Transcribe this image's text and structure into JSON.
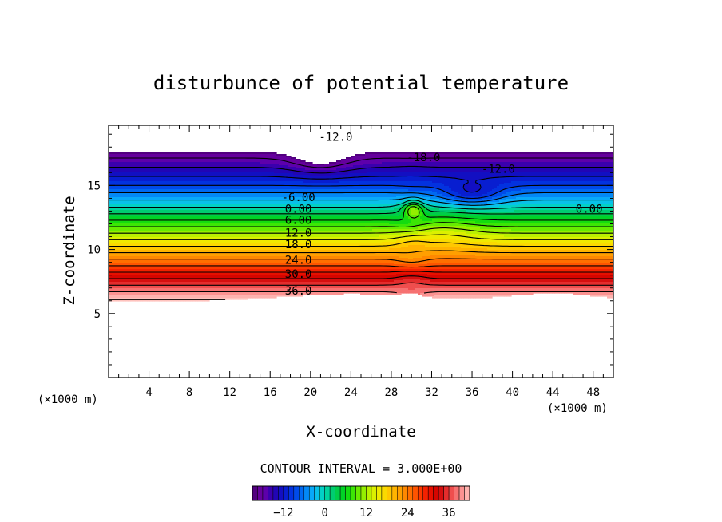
{
  "chart_data": {
    "type": "contour",
    "title": "disturbunce of potential temperature",
    "xlabel": "X-coordinate",
    "ylabel": "Z-coordinate",
    "x_unit_left": "(×1000 m)",
    "x_unit_right": "(×1000 m)",
    "xlim": [
      0,
      50
    ],
    "ylim": [
      0,
      19.7
    ],
    "x_ticks": [
      4,
      8,
      12,
      16,
      20,
      24,
      28,
      32,
      36,
      40,
      44,
      48
    ],
    "y_ticks": [
      5,
      10,
      15
    ],
    "contour_interval_text": "CONTOUR INTERVAL = 3.000E+00",
    "contour_interval": 3.0,
    "value_range": [
      -18,
      42
    ],
    "colorbar_ticks": [
      -12,
      0,
      12,
      24,
      36
    ],
    "colorbar_range": [
      -21,
      42
    ],
    "contour_labels": [
      {
        "text": "-12.0",
        "x": 22.5,
        "z": 18.8
      },
      {
        "text": "-18.0",
        "x": 31.2,
        "z": 17.2
      },
      {
        "text": "-12.0",
        "x": 38.6,
        "z": 16.3
      },
      {
        "text": "-6.00",
        "x": 18.8,
        "z": 14.1
      },
      {
        "text": "0.00",
        "x": 18.8,
        "z": 13.2
      },
      {
        "text": "0.00",
        "x": 47.6,
        "z": 13.2
      },
      {
        "text": "6.00",
        "x": 18.8,
        "z": 12.3
      },
      {
        "text": "12.0",
        "x": 18.8,
        "z": 11.3
      },
      {
        "text": "18.0",
        "x": 18.8,
        "z": 10.4
      },
      {
        "text": "24.0",
        "x": 18.8,
        "z": 9.2
      },
      {
        "text": "30.0",
        "x": 18.8,
        "z": 8.1
      },
      {
        "text": "36.0",
        "x": 18.8,
        "z": 6.8
      }
    ],
    "colors": {
      "positive_contour": "#000000",
      "negative_contour": "#000000",
      "frame": "#000000"
    }
  }
}
